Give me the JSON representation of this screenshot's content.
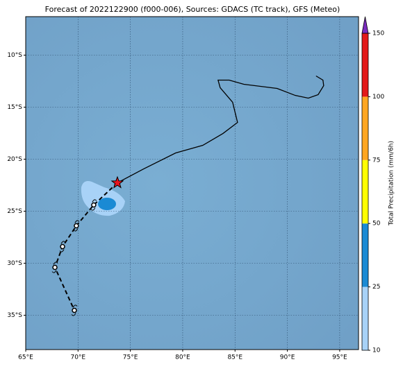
{
  "chart_data": {
    "type": "map",
    "title": "Forecast of 2022122900 (f000-006), Sources: GDACS (TC track), GFS (Meteo)",
    "xlim": [
      65,
      96.8
    ],
    "ylim": [
      -38.3,
      -6.3
    ],
    "xticks": [
      {
        "value": 65,
        "label": "65°E"
      },
      {
        "value": 70,
        "label": "70°E"
      },
      {
        "value": 75,
        "label": "75°E"
      },
      {
        "value": 80,
        "label": "80°E"
      },
      {
        "value": 85,
        "label": "85°E"
      },
      {
        "value": 90,
        "label": "90°E"
      },
      {
        "value": 95,
        "label": "95°E"
      }
    ],
    "yticks": [
      {
        "value": -10,
        "label": "10°S"
      },
      {
        "value": -15,
        "label": "15°S"
      },
      {
        "value": -20,
        "label": "20°S"
      },
      {
        "value": -25,
        "label": "25°S"
      },
      {
        "value": -30,
        "label": "30°S"
      },
      {
        "value": -35,
        "label": "35°S"
      }
    ],
    "grid": true,
    "track": {
      "observed": {
        "color": "#000000",
        "lon": [
          73.76,
          76.28,
          79.33,
          81.92,
          83.85,
          85.24,
          84.77,
          83.58,
          83.38,
          84.44,
          85.84,
          89.02,
          90.75,
          92.0,
          92.94,
          93.47,
          93.4,
          92.74
        ],
        "lat": [
          -22.27,
          -20.93,
          -19.4,
          -18.67,
          -17.53,
          -16.47,
          -14.53,
          -13.13,
          -12.4,
          -12.4,
          -12.8,
          -13.2,
          -13.87,
          -14.13,
          -13.8,
          -12.93,
          -12.4,
          -12.0
        ]
      },
      "forecast": {
        "color": "#000000",
        "lon": [
          73.76,
          71.5,
          69.84,
          68.52,
          67.79,
          69.65
        ],
        "lat": [
          -22.27,
          -24.4,
          -26.4,
          -28.4,
          -30.4,
          -34.53
        ]
      },
      "current_color": "#e8141e"
    },
    "colorbar": {
      "label": "Total Precipitation (mm/6h)",
      "ticks": [
        10,
        25,
        50,
        75,
        100,
        150
      ],
      "colors": [
        "#a8d2f7",
        "#1a8ad4",
        "#ffff00",
        "#ffa620",
        "#e31a1a"
      ],
      "extend_color": "#7b2cbf"
    }
  }
}
